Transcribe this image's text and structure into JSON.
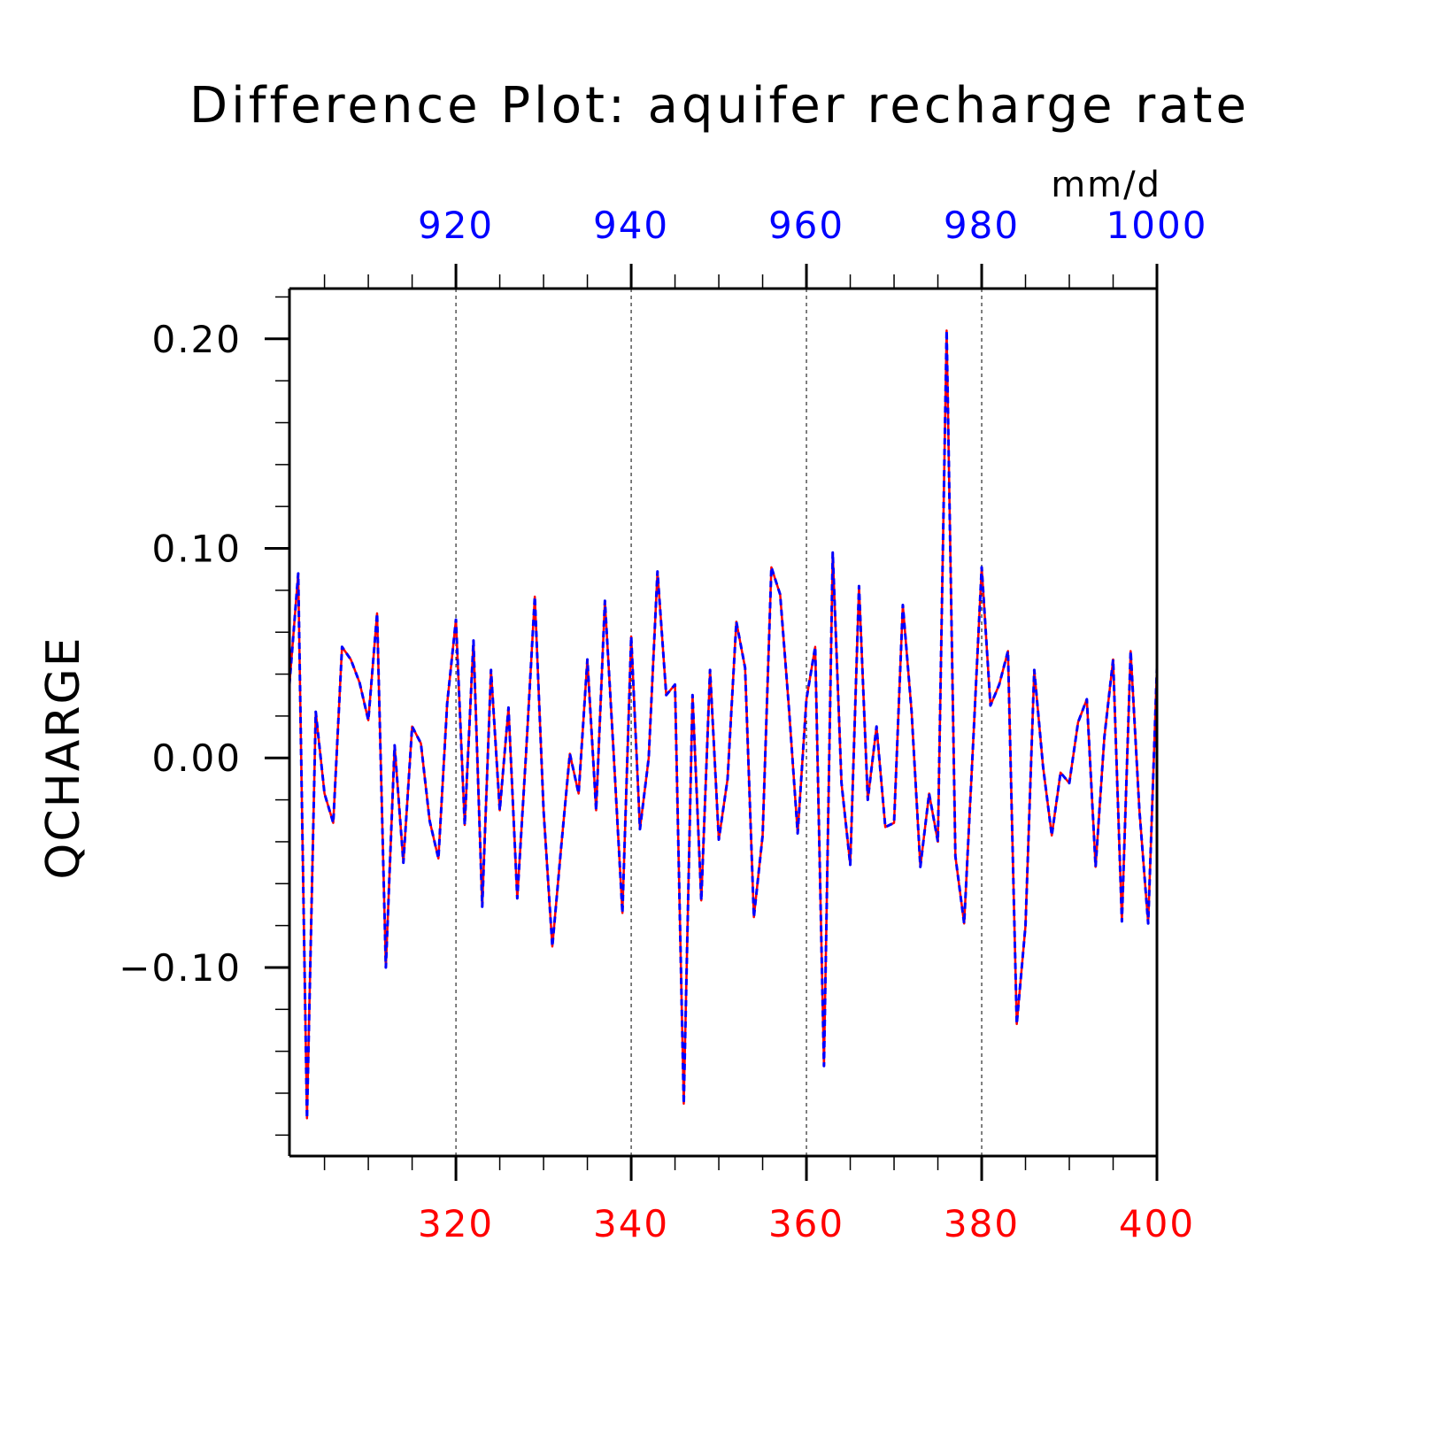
{
  "chart_data": {
    "type": "line",
    "title": "Difference Plot: aquifer recharge rate",
    "units": "mm/d",
    "ylabel": "QCHARGE",
    "xlabel": "",
    "ylim": [
      -0.19,
      0.224
    ],
    "grid": "vertical dashed",
    "colors": {
      "bottom_axis": "#ff0000",
      "top_axis": "#0000ff",
      "axes": "#000000",
      "grid": "#000000"
    },
    "x_bottom": {
      "range": [
        301,
        400
      ],
      "ticks": [
        320,
        340,
        360,
        380,
        400
      ],
      "tick_labels": [
        "320",
        "340",
        "360",
        "380",
        "400"
      ]
    },
    "x_top": {
      "range": [
        901,
        1000
      ],
      "ticks": [
        920,
        940,
        960,
        980,
        1000
      ],
      "tick_labels": [
        "920",
        "940",
        "960",
        "980",
        "1000"
      ]
    },
    "y_ticks": [
      -0.1,
      0.0,
      0.1,
      0.2
    ],
    "y_tick_labels": [
      "−0.10",
      "0.00",
      "0.10",
      "0.20"
    ],
    "series": [
      {
        "color": "#ff0000",
        "style": "solid",
        "axis": "bottom",
        "x": [
          301,
          302,
          303,
          304,
          305,
          306,
          307,
          308,
          309,
          310,
          311,
          312,
          313,
          314,
          315,
          316,
          317,
          318,
          319,
          320,
          321,
          322,
          323,
          324,
          325,
          326,
          327,
          328,
          329,
          330,
          331,
          332,
          333,
          334,
          335,
          336,
          337,
          338,
          339,
          340,
          341,
          342,
          343,
          344,
          345,
          346,
          347,
          348,
          349,
          350,
          351,
          352,
          353,
          354,
          355,
          356,
          357,
          358,
          359,
          360,
          361,
          362,
          363,
          364,
          365,
          366,
          367,
          368,
          369,
          370,
          371,
          372,
          373,
          374,
          375,
          376,
          377,
          378,
          379,
          380,
          381,
          382,
          383,
          384,
          385,
          386,
          387,
          388,
          389,
          390,
          391,
          392,
          393,
          394,
          395,
          396,
          397,
          398,
          399,
          400
        ],
        "values": [
          0.035,
          0.088,
          -0.172,
          0.022,
          -0.017,
          -0.031,
          0.053,
          0.047,
          0.036,
          0.018,
          0.069,
          -0.1,
          0.006,
          -0.05,
          0.015,
          0.007,
          -0.03,
          -0.048,
          0.026,
          0.066,
          -0.032,
          0.056,
          -0.071,
          0.042,
          -0.025,
          0.024,
          -0.067,
          0.002,
          0.077,
          -0.025,
          -0.09,
          -0.043,
          0.002,
          -0.017,
          0.047,
          -0.025,
          0.075,
          0.002,
          -0.074,
          0.058,
          -0.034,
          0.0,
          0.089,
          0.03,
          0.035,
          -0.165,
          0.03,
          -0.068,
          0.042,
          -0.039,
          -0.01,
          0.065,
          0.043,
          -0.076,
          -0.037,
          0.091,
          0.078,
          0.024,
          -0.036,
          0.028,
          0.053,
          -0.147,
          0.098,
          -0.012,
          -0.051,
          0.082,
          -0.02,
          0.015,
          -0.033,
          -0.031,
          0.073,
          0.022,
          -0.052,
          -0.017,
          -0.04,
          0.204,
          -0.047,
          -0.079,
          0.005,
          0.091,
          0.025,
          0.035,
          0.051,
          -0.127,
          -0.08,
          0.042,
          -0.004,
          -0.037,
          -0.007,
          -0.012,
          0.017,
          0.028,
          -0.052,
          0.01,
          0.047,
          -0.078,
          0.051,
          -0.025,
          -0.079,
          0.043
        ]
      },
      {
        "color": "#0000ff",
        "style": "dashed",
        "axis": "top",
        "x": [
          901,
          902,
          903,
          904,
          905,
          906,
          907,
          908,
          909,
          910,
          911,
          912,
          913,
          914,
          915,
          916,
          917,
          918,
          919,
          920,
          921,
          922,
          923,
          924,
          925,
          926,
          927,
          928,
          929,
          930,
          931,
          932,
          933,
          934,
          935,
          936,
          937,
          938,
          939,
          940,
          941,
          942,
          943,
          944,
          945,
          946,
          947,
          948,
          949,
          950,
          951,
          952,
          953,
          954,
          955,
          956,
          957,
          958,
          959,
          960,
          961,
          962,
          963,
          964,
          965,
          966,
          967,
          968,
          969,
          970,
          971,
          972,
          973,
          974,
          975,
          976,
          977,
          978,
          979,
          980,
          981,
          982,
          983,
          984,
          985,
          986,
          987,
          988,
          989,
          990,
          991,
          992,
          993,
          994,
          995,
          996,
          997,
          998,
          999,
          1000
        ],
        "values": [
          0.035,
          0.088,
          -0.172,
          0.022,
          -0.017,
          -0.031,
          0.053,
          0.047,
          0.036,
          0.018,
          0.069,
          -0.1,
          0.006,
          -0.05,
          0.015,
          0.007,
          -0.03,
          -0.048,
          0.026,
          0.066,
          -0.032,
          0.056,
          -0.071,
          0.042,
          -0.025,
          0.024,
          -0.067,
          0.002,
          0.077,
          -0.025,
          -0.09,
          -0.043,
          0.002,
          -0.017,
          0.047,
          -0.025,
          0.075,
          0.002,
          -0.074,
          0.058,
          -0.034,
          0.0,
          0.089,
          0.03,
          0.035,
          -0.165,
          0.03,
          -0.068,
          0.042,
          -0.039,
          -0.01,
          0.065,
          0.043,
          -0.076,
          -0.037,
          0.091,
          0.078,
          0.024,
          -0.036,
          0.028,
          0.053,
          -0.147,
          0.098,
          -0.012,
          -0.051,
          0.082,
          -0.02,
          0.015,
          -0.033,
          -0.031,
          0.073,
          0.022,
          -0.052,
          -0.017,
          -0.04,
          0.204,
          -0.047,
          -0.079,
          0.005,
          0.091,
          0.025,
          0.035,
          0.051,
          -0.127,
          -0.08,
          0.042,
          -0.004,
          -0.037,
          -0.007,
          -0.012,
          0.017,
          0.028,
          -0.052,
          0.01,
          0.047,
          -0.078,
          0.051,
          -0.025,
          -0.079,
          0.043
        ]
      }
    ]
  }
}
